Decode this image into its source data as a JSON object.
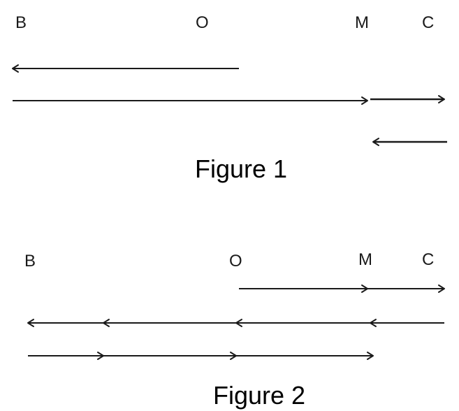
{
  "figure1": {
    "caption": "Figure 1",
    "points": [
      {
        "id": "B",
        "label": "B"
      },
      {
        "id": "O",
        "label": "O"
      },
      {
        "id": "M",
        "label": "M"
      },
      {
        "id": "C",
        "label": "C"
      }
    ],
    "arrows": [
      {
        "id": "f1-arrow-1",
        "from": "O",
        "to": "B",
        "direction": "left"
      },
      {
        "id": "f1-arrow-2",
        "from": "B",
        "to": "M",
        "direction": "right"
      },
      {
        "id": "f1-arrow-3",
        "from": "M",
        "to": "C",
        "direction": "right"
      },
      {
        "id": "f1-arrow-4",
        "from": "C",
        "to": "M",
        "direction": "left"
      }
    ]
  },
  "figure2": {
    "caption": "Figure 2",
    "points": [
      {
        "id": "B",
        "label": "B"
      },
      {
        "id": "O",
        "label": "O"
      },
      {
        "id": "M",
        "label": "M"
      },
      {
        "id": "C",
        "label": "C"
      }
    ],
    "arrows": [
      {
        "id": "f2-arrow-1",
        "from": "O",
        "to": "C",
        "direction": "right"
      },
      {
        "id": "f2-arrow-2",
        "from": "C",
        "to": "B",
        "direction": "left"
      },
      {
        "id": "f2-arrow-3",
        "from": "B",
        "to": "M",
        "direction": "right"
      }
    ]
  }
}
